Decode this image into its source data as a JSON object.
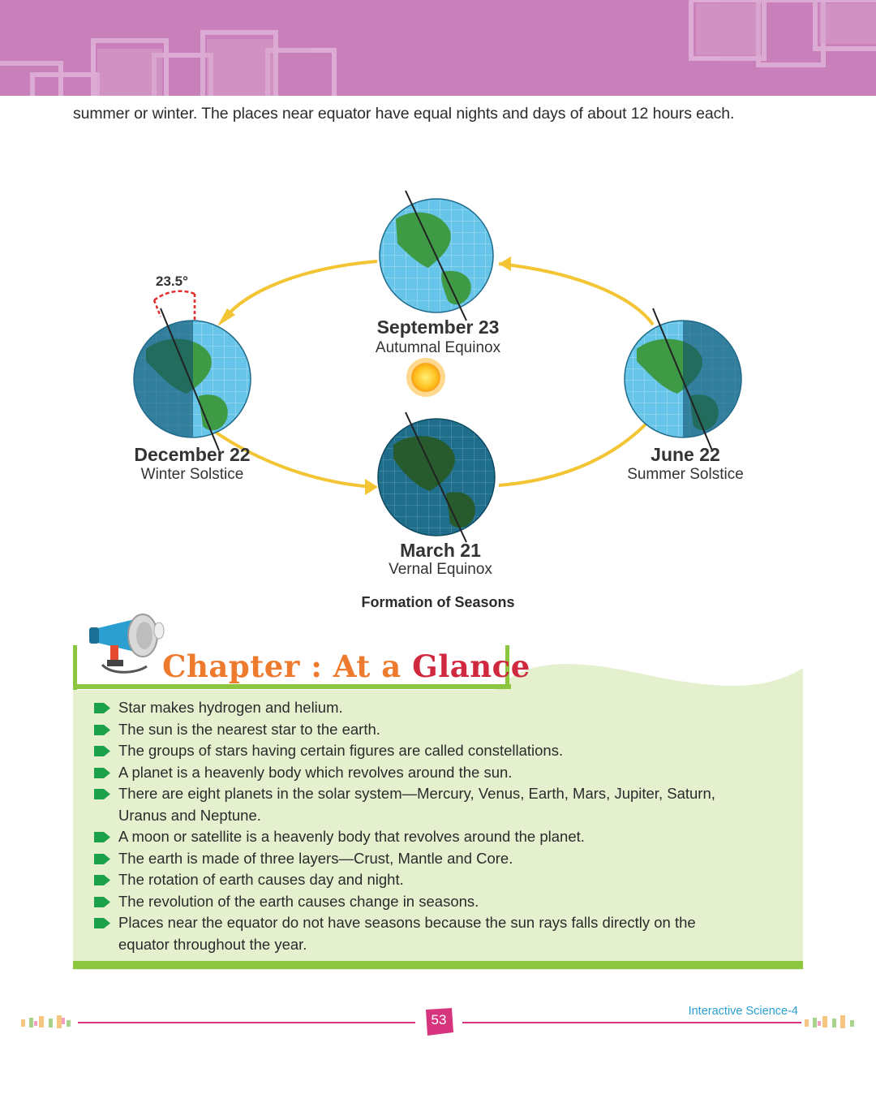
{
  "intro_text": "summer or winter. The places near equator have equal nights and days of about 12 hours each.",
  "diagram": {
    "angle_label": "23.5°",
    "september": {
      "date": "September 23",
      "name": "Autumnal Equinox"
    },
    "december": {
      "date": "December 22",
      "name": "Winter Solstice"
    },
    "june": {
      "date": "June 22",
      "name": "Summer Solstice"
    },
    "march": {
      "date": "March 21",
      "name": "Vernal Equinox"
    }
  },
  "caption": "Formation of Seasons",
  "glance": {
    "title_part1": "Chapter : At a",
    "title_part2": "Glance",
    "points": [
      {
        "line1": "Star makes hydrogen and helium."
      },
      {
        "line1": "The sun is the nearest star to the earth."
      },
      {
        "line1": "The groups of stars having certain figures are called constellations."
      },
      {
        "line1": "A planet is a heavenly body which revolves around the sun."
      },
      {
        "line1": "There are eight planets in the solar system—Mercury, Venus, Earth, Mars, Jupiter, Saturn,",
        "line2": "Uranus and Neptune."
      },
      {
        "line1": "A moon or satellite is a heavenly body that revolves around the planet."
      },
      {
        "line1": "The earth is made of three layers—Crust, Mantle and Core."
      },
      {
        "line1": "The rotation of earth causes day and night."
      },
      {
        "line1": "The revolution of the earth causes change in seasons."
      },
      {
        "line1": "Places near the equator do not have seasons because the sun rays falls directly on the",
        "line2": "equator throughout the year."
      }
    ]
  },
  "footer": {
    "page_number": "53",
    "book_name": "Interactive Science-4"
  },
  "colors": {
    "banner": "#c97fb9",
    "title_orange": "#ee7a2e",
    "title_red": "#d0283e",
    "panel_green": "#e5f0cf",
    "accent_green": "#8cc63f",
    "footer_pink": "#d6357e",
    "book_blue": "#2a9fd0"
  }
}
